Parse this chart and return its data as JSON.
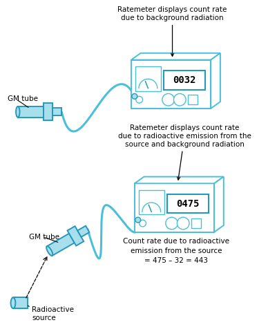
{
  "bg_color": "#ffffff",
  "cyan": "#4bbfd8",
  "cyan_light": "#a8dfed",
  "cyan_dark": "#2898b8",
  "top_label": "Ratemeter displays count rate\ndue to background radiation",
  "bottom_label": "Ratemeter displays count rate\ndue to radioactive emission from the\nsource and background radiation",
  "count_label": "Count rate due to radioactive\nemission from the source\n= 475 – 32 = 443",
  "display1": "0032",
  "display2": "0475",
  "gm_tube_label": "GM tube",
  "radioactive_label": "Radioactive\nsource",
  "figw": 3.88,
  "figh": 4.73,
  "dpi": 100
}
